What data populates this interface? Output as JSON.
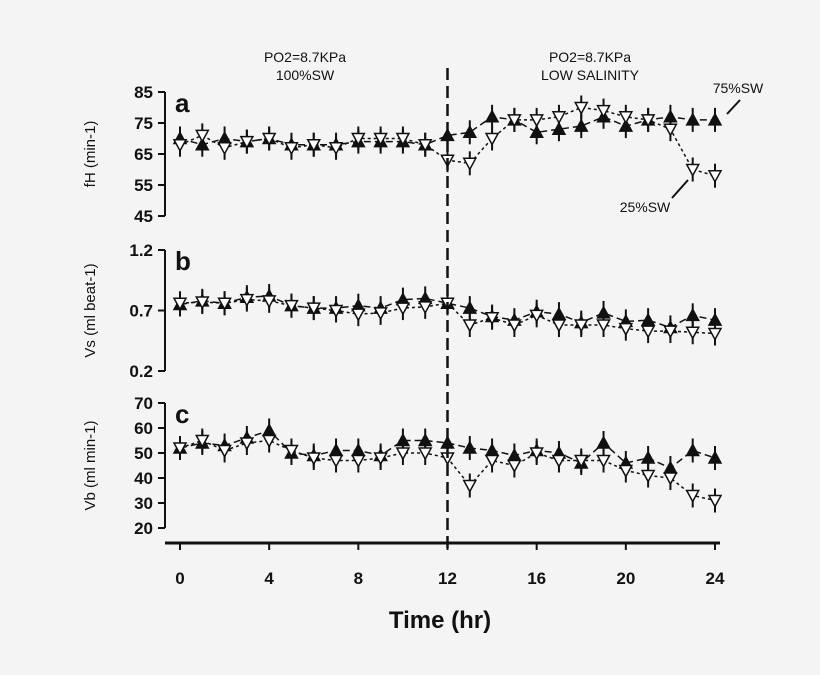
{
  "chart_data": {
    "type": "line",
    "xlabel": "Time (hr)",
    "x": [
      0,
      1,
      2,
      3,
      4,
      5,
      6,
      7,
      8,
      9,
      10,
      11,
      12,
      13,
      14,
      15,
      16,
      17,
      18,
      19,
      20,
      21,
      22,
      23,
      24
    ],
    "xticks": [
      "0",
      "4",
      "8",
      "12",
      "16",
      "20",
      "24"
    ],
    "xlim": [
      0,
      24
    ],
    "divider_x": 12,
    "headers": [
      {
        "line1": "PO2=8.7KPa",
        "line2": "100%SW"
      },
      {
        "line1": "PO2=8.7KPa",
        "line2": "LOW SALINITY"
      }
    ],
    "panels": [
      {
        "label": "a",
        "ylabel": "fH (min-1)",
        "ylim": [
          45,
          85
        ],
        "yticks": [
          "85",
          "75",
          "65",
          "55",
          "45"
        ],
        "annotations": [
          "75%SW",
          "25%SW"
        ],
        "series": [
          {
            "name": "75%SW",
            "marker": "filled-triangle-up",
            "values": [
              70,
              68,
              70,
              69,
              70,
              68,
              68,
              68,
              69,
              69,
              69,
              68,
              71,
              72,
              77,
              76,
              72,
              73,
              74,
              77,
              74,
              76,
              77,
              76,
              76
            ]
          },
          {
            "name": "25%SW",
            "marker": "open-triangle-down",
            "values": [
              68,
              71,
              67,
              69,
              70,
              67,
              68,
              67,
              70,
              70,
              70,
              68,
              63,
              62,
              70,
              76,
              76,
              77,
              80,
              79,
              77,
              76,
              73,
              60,
              58
            ]
          }
        ]
      },
      {
        "label": "b",
        "ylabel": "Vs (ml beat-1)",
        "ylim": [
          0.2,
          1.2
        ],
        "yticks": [
          "1.2",
          "0.7",
          "0.2"
        ],
        "series": [
          {
            "name": "75%SW",
            "marker": "filled-triangle-up",
            "values": [
              0.75,
              0.78,
              0.76,
              0.81,
              0.82,
              0.74,
              0.72,
              0.72,
              0.74,
              0.72,
              0.79,
              0.8,
              0.76,
              0.72,
              0.65,
              0.62,
              0.69,
              0.67,
              0.6,
              0.68,
              0.61,
              0.62,
              0.56,
              0.66,
              0.62
            ]
          },
          {
            "name": "25%SW",
            "marker": "open-triangle-down",
            "values": [
              0.76,
              0.77,
              0.76,
              0.79,
              0.78,
              0.74,
              0.72,
              0.7,
              0.67,
              0.68,
              0.72,
              0.73,
              0.76,
              0.58,
              0.64,
              0.58,
              0.66,
              0.58,
              0.58,
              0.58,
              0.55,
              0.53,
              0.53,
              0.52,
              0.51
            ]
          }
        ]
      },
      {
        "label": "c",
        "ylabel": "Vb (ml min-1)",
        "ylim": [
          20,
          70
        ],
        "yticks": [
          "70",
          "60",
          "50",
          "40",
          "30",
          "20"
        ],
        "series": [
          {
            "name": "75%SW",
            "marker": "filled-triangle-up",
            "values": [
              52,
              54,
              53,
              56,
              59,
              50,
              49,
              51,
              51,
              49,
              55,
              55,
              54,
              52,
              51,
              49,
              51,
              50,
              46,
              54,
              46,
              48,
              44,
              51,
              48
            ]
          },
          {
            "name": "25%SW",
            "marker": "open-triangle-down",
            "values": [
              52,
              55,
              51,
              54,
              55,
              51,
              48,
              47,
              47,
              48,
              50,
              50,
              48,
              37,
              47,
              45,
              50,
              47,
              47,
              47,
              43,
              41,
              40,
              33,
              31
            ]
          }
        ]
      }
    ]
  }
}
